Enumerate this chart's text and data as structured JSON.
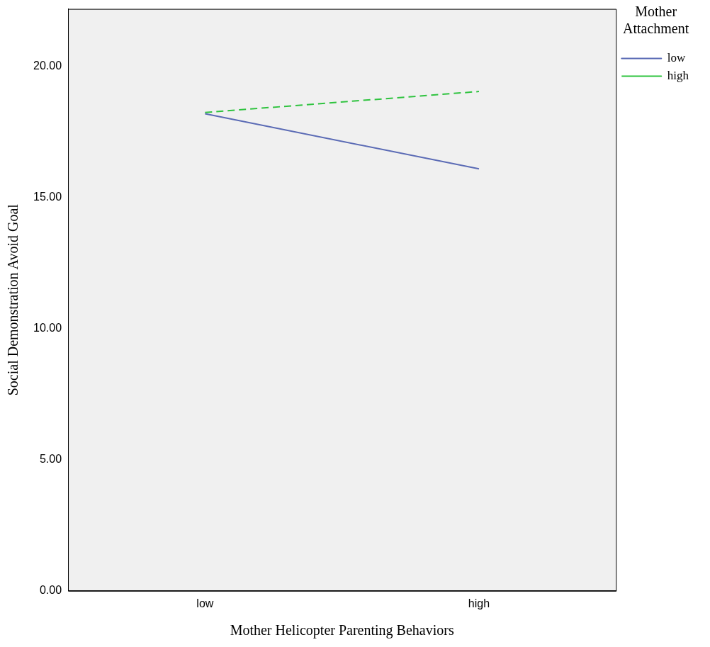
{
  "chart_data": {
    "type": "line",
    "xlabel": "Mother Helicopter Parenting Behaviors",
    "ylabel": "Social Demonstration Avoid Goal",
    "legend_title": "Mother Attachment",
    "categories": [
      "low",
      "high"
    ],
    "series": [
      {
        "name": "low",
        "color": "#5b6bb5",
        "values": [
          18.2,
          16.1
        ],
        "line_style": "solid"
      },
      {
        "name": "high",
        "color": "#2fc33f",
        "values": [
          18.25,
          19.05
        ],
        "line_style": "dashed"
      }
    ],
    "ylim": [
      0,
      22.2
    ],
    "yticks": [
      {
        "value": 0,
        "label": "0.00"
      },
      {
        "value": 5,
        "label": "5.00"
      },
      {
        "value": 10,
        "label": "10.00"
      },
      {
        "value": 15,
        "label": "15.00"
      },
      {
        "value": 20,
        "label": "20.00"
      }
    ],
    "grid": false,
    "legend": "top right",
    "marker": "none"
  }
}
